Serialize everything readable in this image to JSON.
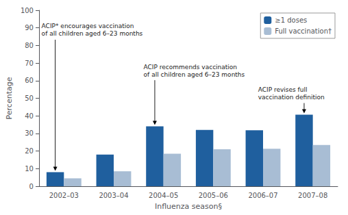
{
  "chart_data": {
    "type": "bar",
    "categories": [
      "2002–03",
      "2003–04",
      "2004–05",
      "2005–06",
      "2006–07",
      "2007–08"
    ],
    "series": [
      {
        "name": "≥1 doses",
        "color": "#1f5f9e",
        "values": [
          8.0,
          18.0,
          34.0,
          32.0,
          31.8,
          40.7
        ]
      },
      {
        "name": "Full vaccination†",
        "color": "#a8bdd4",
        "values": [
          4.5,
          8.5,
          18.5,
          21.0,
          21.3,
          23.4
        ]
      }
    ],
    "xlabel": "Influenza season§",
    "ylabel": "Percentage",
    "ylim": [
      0,
      100
    ],
    "yticks": [
      0,
      10,
      20,
      30,
      40,
      50,
      60,
      70,
      80,
      90,
      100
    ],
    "grid": false,
    "legend": "upper right",
    "annotations": [
      {
        "text": "ACIP* encourages vaccination\nof all children aged 6–23 months",
        "x": "2002–03"
      },
      {
        "text": "ACIP recommends vaccination\nof all children aged 6–23 months",
        "x": "2004–05"
      },
      {
        "text": "ACIP revises full\nvaccination definition",
        "x": "2007–08"
      }
    ]
  }
}
